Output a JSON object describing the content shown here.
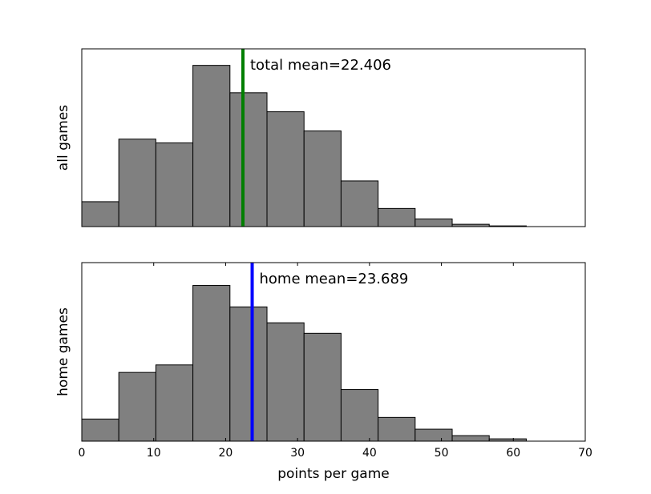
{
  "chart_data": [
    {
      "type": "bar",
      "bin_edges": [
        0,
        5.15,
        10.3,
        15.45,
        20.6,
        25.75,
        30.9,
        36.05,
        41.2,
        46.35,
        51.5,
        56.65,
        61.8
      ],
      "values": [
        0.14,
        0.492,
        0.471,
        0.907,
        0.753,
        0.646,
        0.538,
        0.257,
        0.102,
        0.043,
        0.013,
        0.004
      ],
      "mean": 22.406,
      "mean_label": "total mean=22.406",
      "mean_color": "#007f00",
      "bar_color": "#808080",
      "ylabel": "all games",
      "xlim": [
        0,
        70
      ],
      "ylim": [
        0,
        1
      ],
      "show_xticks": false,
      "show_yticks": false
    },
    {
      "type": "bar",
      "bin_edges": [
        0,
        5.15,
        10.3,
        15.45,
        20.6,
        25.75,
        30.9,
        36.05,
        41.2,
        46.35,
        51.5,
        56.65,
        61.8
      ],
      "values": [
        0.124,
        0.385,
        0.427,
        0.872,
        0.752,
        0.663,
        0.604,
        0.289,
        0.133,
        0.067,
        0.031,
        0.013
      ],
      "mean": 23.689,
      "mean_label": "home mean=23.689",
      "mean_color": "#0000ff",
      "bar_color": "#808080",
      "ylabel": "home games",
      "xlim": [
        0,
        70
      ],
      "ylim": [
        0,
        1
      ],
      "show_xticks": true,
      "xticks": [
        0,
        10,
        20,
        30,
        40,
        50,
        60,
        70
      ],
      "xticklabels": [
        "0",
        "10",
        "20",
        "30",
        "40",
        "50",
        "60",
        "70"
      ],
      "xlabel": "points per game",
      "show_yticks": false
    }
  ]
}
